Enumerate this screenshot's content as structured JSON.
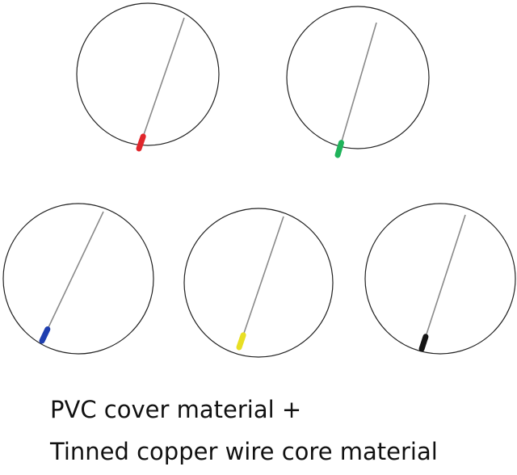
{
  "products": [
    {
      "color_name": "red",
      "sleeve_color": "#e0262b"
    },
    {
      "color_name": "green",
      "sleeve_color": "#1fb35a"
    },
    {
      "color_name": "blue",
      "sleeve_color": "#1f3fb0"
    },
    {
      "color_name": "yellow",
      "sleeve_color": "#e8df24"
    },
    {
      "color_name": "black",
      "sleeve_color": "#151515"
    }
  ],
  "caption": {
    "line1": "PVC cover material +",
    "line2": "Tinned copper wire core material"
  }
}
